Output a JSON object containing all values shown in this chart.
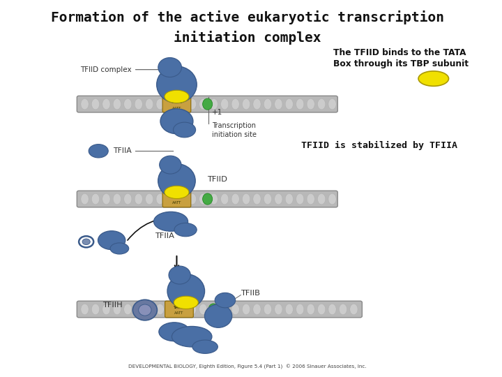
{
  "title_line1": "Formation of the active eukaryotic transcription",
  "title_line2": "initiation complex",
  "title_fontsize": 14,
  "bg_color": "#ffffff",
  "dna_color": "#b8b8b8",
  "dna_outline": "#888888",
  "tata_color": "#c8a040",
  "protein_blue": "#4a6fa5",
  "protein_blue_dark": "#3a5a8a",
  "tbp_yellow": "#f0e000",
  "green_mark": "#44aa44",
  "text_color": "#111111",
  "label_color": "#333333",
  "footer": "DEVELOPMENTAL BIOLOGY, Eighth Edition, Figure 5.4 (Part 1)  © 2006 Sinauer Associates, Inc.",
  "right_text1": "The TFIID binds to the TATA",
  "right_text2": "Box through its TBP subunit",
  "stabilized_text": "TFIID is stabilized by TFIIA"
}
